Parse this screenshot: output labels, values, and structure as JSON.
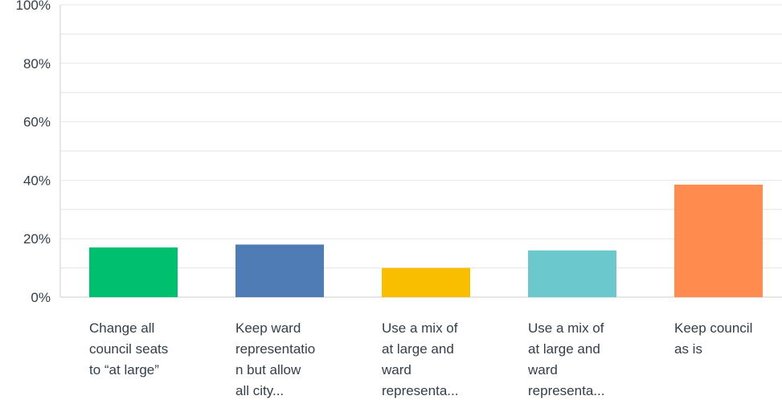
{
  "chart_data": {
    "type": "bar",
    "categories": [
      [
        "Change all",
        "council seats",
        "to “at large”"
      ],
      [
        "Keep ward",
        "representatio",
        "n but allow",
        "all city..."
      ],
      [
        "Use a mix of",
        "at large and",
        "ward",
        "representa..."
      ],
      [
        "Use a mix of",
        "at large and",
        "ward",
        "representa..."
      ],
      [
        "Keep council",
        "as is"
      ]
    ],
    "values": [
      17,
      18,
      10,
      16,
      38.5
    ],
    "colors": [
      "#00bf6f",
      "#507cb6",
      "#f9be00",
      "#6bc8cd",
      "#ff8b4f"
    ],
    "y_ticks": [
      "0%",
      "20%",
      "40%",
      "60%",
      "80%",
      "100%"
    ],
    "ylim": [
      0,
      100
    ],
    "minor_grid_step": 10,
    "title": "",
    "xlabel": "",
    "ylabel": ""
  }
}
